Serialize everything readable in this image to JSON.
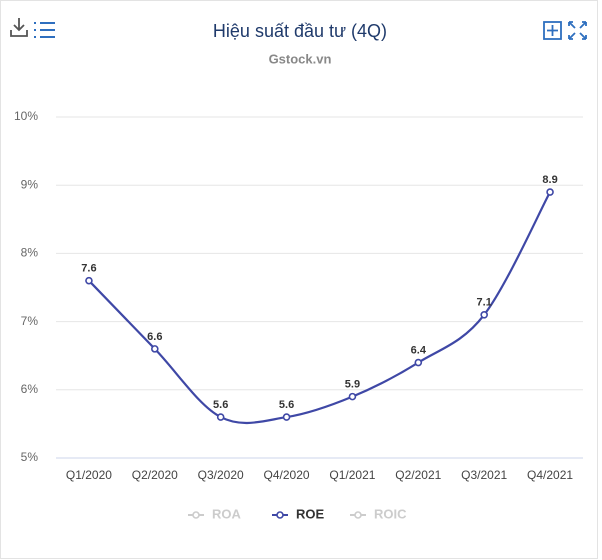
{
  "chart_data": {
    "type": "line",
    "title": "Hiệu suất đầu tư (4Q)",
    "subtitle": "Gstock.vn",
    "categories": [
      "Q1/2020",
      "Q2/2020",
      "Q3/2020",
      "Q4/2020",
      "Q1/2021",
      "Q2/2021",
      "Q3/2021",
      "Q4/2021"
    ],
    "series": [
      {
        "name": "ROA",
        "color": "#cccccc",
        "hidden": true
      },
      {
        "name": "ROE",
        "color": "#3f48a6",
        "values": [
          7.6,
          6.6,
          5.6,
          5.6,
          5.9,
          6.4,
          7.1,
          8.9
        ]
      },
      {
        "name": "ROIC",
        "color": "#cccccc",
        "hidden": true
      }
    ],
    "ylim": [
      5,
      10
    ],
    "yticks": [
      {
        "value": 5,
        "label": "5%"
      },
      {
        "value": 6,
        "label": "6%"
      },
      {
        "value": 7,
        "label": "7%"
      },
      {
        "value": 8,
        "label": "8%"
      },
      {
        "value": 9,
        "label": "9%"
      },
      {
        "value": 10,
        "label": "10%"
      }
    ],
    "grid": true,
    "legend": "bottom",
    "smooth": true
  }
}
